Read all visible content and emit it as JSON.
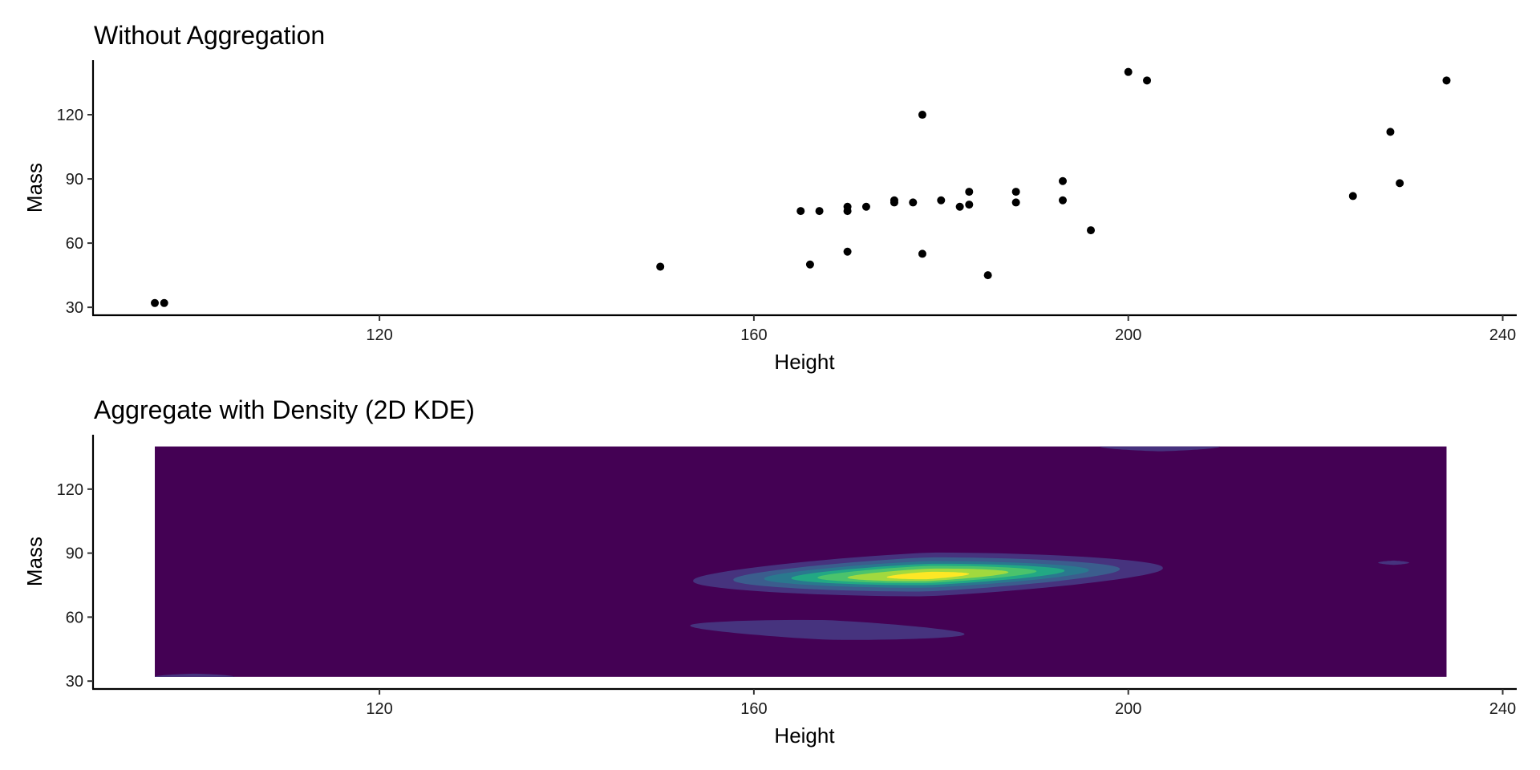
{
  "chart_data": [
    {
      "type": "scatter",
      "title": "Without Aggregation",
      "xlabel": "Height",
      "ylabel": "Mass",
      "xlim": [
        89.4,
        241.5
      ],
      "ylim": [
        26.3,
        145.5
      ],
      "xticks": [
        120,
        160,
        200,
        240
      ],
      "yticks": [
        30,
        60,
        90,
        120
      ],
      "grid": false,
      "legend": "none",
      "point_color": "#000000",
      "points": [
        {
          "x": 96,
          "y": 32
        },
        {
          "x": 97,
          "y": 32
        },
        {
          "x": 150,
          "y": 49
        },
        {
          "x": 165,
          "y": 75
        },
        {
          "x": 166,
          "y": 50
        },
        {
          "x": 167,
          "y": 75
        },
        {
          "x": 170,
          "y": 77
        },
        {
          "x": 170,
          "y": 75
        },
        {
          "x": 170,
          "y": 56
        },
        {
          "x": 172,
          "y": 77
        },
        {
          "x": 175,
          "y": 80
        },
        {
          "x": 175,
          "y": 79
        },
        {
          "x": 177,
          "y": 79
        },
        {
          "x": 178,
          "y": 120
        },
        {
          "x": 178,
          "y": 55
        },
        {
          "x": 180,
          "y": 80
        },
        {
          "x": 182,
          "y": 77
        },
        {
          "x": 183,
          "y": 84
        },
        {
          "x": 183,
          "y": 78
        },
        {
          "x": 185,
          "y": 45
        },
        {
          "x": 188,
          "y": 84
        },
        {
          "x": 188,
          "y": 79
        },
        {
          "x": 193,
          "y": 89
        },
        {
          "x": 193,
          "y": 80
        },
        {
          "x": 196,
          "y": 66
        },
        {
          "x": 200,
          "y": 140
        },
        {
          "x": 202,
          "y": 136
        },
        {
          "x": 224,
          "y": 82
        },
        {
          "x": 228,
          "y": 112
        },
        {
          "x": 229,
          "y": 88
        },
        {
          "x": 234,
          "y": 136
        }
      ]
    },
    {
      "type": "heatmap",
      "subtype": "2d-kde-filled-contour",
      "title": "Aggregate with Density (2D KDE)",
      "xlabel": "Height",
      "ylabel": "Mass",
      "xlim": [
        89.4,
        241.5
      ],
      "ylim": [
        26.3,
        145.5
      ],
      "xticks": [
        120,
        160,
        200,
        240
      ],
      "yticks": [
        30,
        60,
        90,
        120
      ],
      "grid": false,
      "legend": "none",
      "data_extent": {
        "x": [
          96,
          234
        ],
        "y": [
          32,
          140
        ]
      },
      "palette": [
        "#440154",
        "#46337e",
        "#3b5d8d",
        "#2a788e",
        "#22a884",
        "#4bc36c",
        "#a2d93e",
        "#fde725"
      ],
      "background_level": 0,
      "regions": [
        {
          "name": "main-peak",
          "level": 1,
          "x": [
            153.5,
            203.7
          ],
          "y": [
            70.5,
            91.0
          ],
          "center_y": 80,
          "tilt": 6
        },
        {
          "name": "main-peak",
          "level": 2,
          "x": [
            157.8,
            199.1
          ],
          "y": [
            72.5,
            88.5
          ],
          "center_y": 80,
          "tilt": 5
        },
        {
          "name": "main-peak",
          "level": 3,
          "x": [
            161.1,
            195.8
          ],
          "y": [
            74.0,
            86.5
          ],
          "center_y": 80,
          "tilt": 4
        },
        {
          "name": "main-peak",
          "level": 4,
          "x": [
            164.0,
            193.2
          ],
          "y": [
            75.0,
            85.0
          ],
          "center_y": 80,
          "tilt": 3.5
        },
        {
          "name": "main-peak",
          "level": 5,
          "x": [
            166.8,
            190.2
          ],
          "y": [
            76.0,
            84.0
          ],
          "center_y": 80,
          "tilt": 3
        },
        {
          "name": "main-peak",
          "level": 6,
          "x": [
            170.0,
            187.2
          ],
          "y": [
            77.0,
            82.8
          ],
          "center_y": 79.8,
          "tilt": 2.5
        },
        {
          "name": "main-peak",
          "level": 7,
          "x": [
            174.2,
            183.0
          ],
          "y": [
            77.8,
            81.2
          ],
          "center_y": 79.5,
          "tilt": 1.5
        },
        {
          "name": "low-mass-ridge",
          "level": 1,
          "x": [
            153.2,
            182.5
          ],
          "y": [
            48.8,
            58.0
          ],
          "center_y": 54,
          "tilt": -4
        },
        {
          "name": "top-edge",
          "level": 1,
          "x": [
            197.0,
            209.8
          ],
          "y": [
            136.0,
            140.5
          ],
          "center_y": 140,
          "tilt": 0
        },
        {
          "name": "right-small",
          "level": 1,
          "x": [
            226.7,
            230.0
          ],
          "y": [
            84.5,
            86.5
          ],
          "center_y": 85.5,
          "tilt": 0
        },
        {
          "name": "bottom-left-corner",
          "level": 1,
          "x": [
            96,
            104.5
          ],
          "y": [
            32,
            35
          ],
          "center_y": 32,
          "tilt": 0
        }
      ]
    }
  ]
}
